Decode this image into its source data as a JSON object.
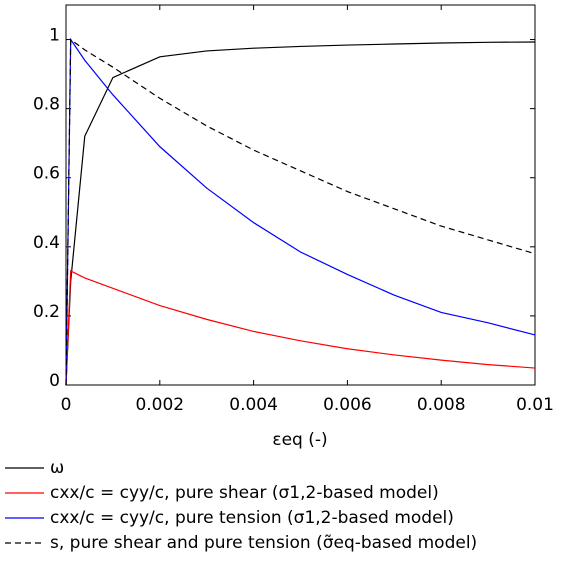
{
  "chart_data": {
    "type": "line",
    "x_label": "εeq (-)",
    "x": [
      0,
      0.0001,
      0.0004,
      0.001,
      0.002,
      0.003,
      0.004,
      0.005,
      0.006,
      0.007,
      0.008,
      0.009,
      0.01
    ],
    "series": [
      {
        "name": "ω",
        "color": "#000000",
        "dash": false,
        "values": [
          0,
          0.3,
          0.72,
          0.89,
          0.95,
          0.967,
          0.975,
          0.98,
          0.984,
          0.987,
          0.99,
          0.992,
          0.993
        ]
      },
      {
        "name": "cxx/c = cyy/c, pure shear (σ1,2-based model)",
        "color": "#ff0000",
        "dash": false,
        "values": [
          0,
          0.33,
          0.31,
          0.28,
          0.23,
          0.19,
          0.155,
          0.128,
          0.105,
          0.087,
          0.072,
          0.059,
          0.049
        ]
      },
      {
        "name": "cxx/c = cyy/c, pure tension (σ1,2-based model)",
        "color": "#0000ff",
        "dash": false,
        "values": [
          0,
          1,
          0.94,
          0.84,
          0.69,
          0.57,
          0.47,
          0.385,
          0.32,
          0.26,
          0.21,
          0.18,
          0.145
        ]
      },
      {
        "name": "s, pure shear and pure tension (σ̃eq-based model)",
        "color": "#000000",
        "dash": true,
        "values": [
          0,
          1,
          0.97,
          0.92,
          0.83,
          0.75,
          0.68,
          0.62,
          0.56,
          0.51,
          0.46,
          0.42,
          0.38
        ]
      }
    ],
    "xlim": [
      0,
      0.01
    ],
    "xticks": [
      0,
      0.002,
      0.004,
      0.006,
      0.008,
      0.01
    ],
    "ylim": [
      0,
      1.1
    ],
    "yticks": [
      0,
      0.2,
      0.4,
      0.6,
      0.8,
      1
    ],
    "grid": false,
    "legend": "below"
  }
}
